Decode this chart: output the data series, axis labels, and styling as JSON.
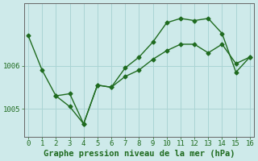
{
  "x_line1": [
    0,
    1,
    2,
    3,
    4,
    5,
    6,
    7,
    8,
    9,
    10,
    11,
    12,
    13,
    14,
    15,
    16
  ],
  "y_line1": [
    1006.7,
    1005.9,
    1005.3,
    1005.35,
    1004.65,
    1005.55,
    1005.5,
    1005.75,
    1005.9,
    1006.15,
    1006.35,
    1006.5,
    1006.5,
    1006.3,
    1006.5,
    1006.05,
    1006.2
  ],
  "x_line2": [
    2,
    3,
    4,
    5,
    6,
    7,
    8,
    9,
    10,
    11,
    12,
    13,
    14,
    15,
    16
  ],
  "y_line2": [
    1005.3,
    1005.05,
    1004.65,
    1005.55,
    1005.5,
    1005.95,
    1006.2,
    1006.55,
    1007.0,
    1007.1,
    1007.05,
    1007.1,
    1006.75,
    1005.85,
    1006.2
  ],
  "ylim": [
    1004.35,
    1007.45
  ],
  "xlim": [
    -0.3,
    16.3
  ],
  "yticks": [
    1005,
    1006
  ],
  "xticks": [
    0,
    1,
    2,
    3,
    4,
    5,
    6,
    7,
    8,
    9,
    10,
    11,
    12,
    13,
    14,
    15,
    16
  ],
  "xlabel": "Graphe pression niveau de la mer (hPa)",
  "line_color": "#1f6b1f",
  "bg_color": "#ceeaea",
  "grid_color": "#aad4d4",
  "marker": "D",
  "marker_size": 2.5,
  "linewidth": 1.0,
  "xlabel_fontsize": 7.5,
  "tick_fontsize": 6.5,
  "tick_color": "#1f6b1f",
  "xlabel_color": "#1f6b1f",
  "xlabel_fontweight": "bold"
}
